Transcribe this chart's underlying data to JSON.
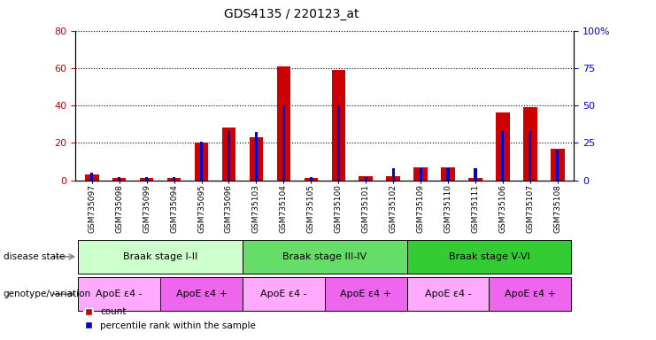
{
  "title": "GDS4135 / 220123_at",
  "samples": [
    "GSM735097",
    "GSM735098",
    "GSM735099",
    "GSM735094",
    "GSM735095",
    "GSM735096",
    "GSM735103",
    "GSM735104",
    "GSM735105",
    "GSM735100",
    "GSM735101",
    "GSM735102",
    "GSM735109",
    "GSM735110",
    "GSM735111",
    "GSM735106",
    "GSM735107",
    "GSM735108"
  ],
  "counts": [
    3,
    1,
    1,
    1,
    20,
    28,
    23,
    61,
    1,
    59,
    2,
    2,
    7,
    7,
    1,
    36,
    39,
    17
  ],
  "percentiles": [
    5,
    2,
    2,
    2,
    26,
    33,
    32,
    50,
    2,
    50,
    2,
    8,
    8,
    8,
    8,
    33,
    33,
    20
  ],
  "bar_color": "#cc0000",
  "pct_color": "#0000cc",
  "ylim_left": [
    0,
    80
  ],
  "ylim_right": [
    0,
    100
  ],
  "yticks_left": [
    0,
    20,
    40,
    60,
    80
  ],
  "yticks_right": [
    0,
    25,
    50,
    75,
    100
  ],
  "ytick_labels_right": [
    "0",
    "25",
    "50",
    "75",
    "100%"
  ],
  "disease_stages": [
    {
      "label": "Braak stage I-II",
      "start": 0,
      "end": 6,
      "color": "#ccffcc"
    },
    {
      "label": "Braak stage III-IV",
      "start": 6,
      "end": 12,
      "color": "#66dd66"
    },
    {
      "label": "Braak stage V-VI",
      "start": 12,
      "end": 18,
      "color": "#33cc33"
    }
  ],
  "genotype_groups": [
    {
      "label": "ApoE ε4 -",
      "start": 0,
      "end": 3,
      "color": "#ffaaff"
    },
    {
      "label": "ApoE ε4 +",
      "start": 3,
      "end": 6,
      "color": "#ee66ee"
    },
    {
      "label": "ApoE ε4 -",
      "start": 6,
      "end": 9,
      "color": "#ffaaff"
    },
    {
      "label": "ApoE ε4 +",
      "start": 9,
      "end": 12,
      "color": "#ee66ee"
    },
    {
      "label": "ApoE ε4 -",
      "start": 12,
      "end": 15,
      "color": "#ffaaff"
    },
    {
      "label": "ApoE ε4 +",
      "start": 15,
      "end": 18,
      "color": "#ee66ee"
    }
  ],
  "disease_label": "disease state",
  "genotype_label": "genotype/variation",
  "legend_count": "count",
  "legend_pct": "percentile rank within the sample",
  "background_color": "#ffffff"
}
